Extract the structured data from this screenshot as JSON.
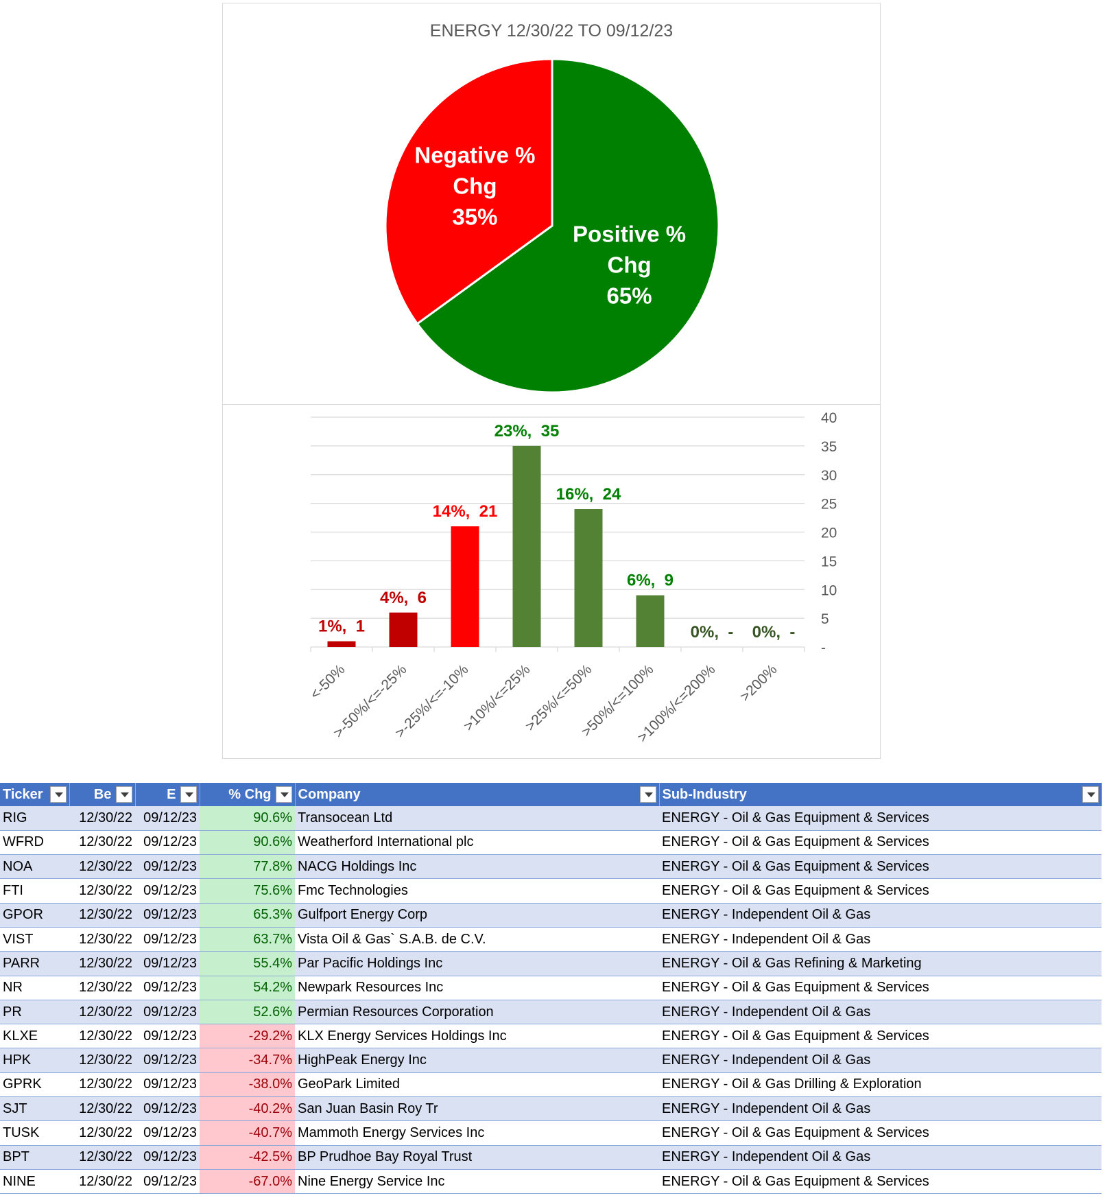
{
  "chart_data": [
    {
      "type": "pie",
      "title": "ENERGY 12/30/22 TO 09/12/23",
      "slices": [
        {
          "label_lines": [
            "Positive %",
            "Chg",
            "65%"
          ],
          "value": 65,
          "color": "#008000"
        },
        {
          "label_lines": [
            "Negative %",
            "Chg",
            "35%"
          ],
          "value": 35,
          "color": "#ff0000"
        }
      ]
    },
    {
      "type": "bar",
      "categories": [
        "<-50%",
        ">-50%/<=-25%",
        ">-25%/<=-10%",
        ">10%/<=25%",
        ">25%/<=50%",
        ">50%/<=100%",
        ">100%/<=200%",
        ">200%"
      ],
      "values": [
        1,
        6,
        21,
        35,
        24,
        9,
        0,
        0
      ],
      "data_labels": [
        "1%,  1",
        "4%,  6",
        "14%,  21",
        "23%,  35",
        "16%,  24",
        "6%,  9",
        "0%,  -",
        "0%,  -"
      ],
      "bar_colors": [
        "#c00000",
        "#c00000",
        "#ff0000",
        "#548235",
        "#548235",
        "#548235",
        "#548235",
        "#548235"
      ],
      "label_colors": [
        "#c00000",
        "#c00000",
        "#ff0000",
        "#008000",
        "#008000",
        "#008000",
        "#375623",
        "#375623"
      ],
      "ylim": [
        0,
        40
      ],
      "yticks": [
        0,
        5,
        10,
        15,
        20,
        25,
        30,
        35,
        40
      ],
      "ytick_labels": [
        "-",
        "5",
        "10",
        "15",
        "20",
        "25",
        "30",
        "35",
        "40"
      ],
      "y_axis_side": "right",
      "grid": true
    }
  ],
  "table": {
    "headers": [
      "Ticker",
      "Be",
      "E",
      "% Chg",
      "Company",
      "Sub-Industry"
    ],
    "rows": [
      [
        "RIG",
        "12/30/22",
        "09/12/23",
        "90.6%",
        "Transocean Ltd",
        "ENERGY - Oil & Gas Equipment & Services"
      ],
      [
        "WFRD",
        "12/30/22",
        "09/12/23",
        "90.6%",
        "Weatherford International plc",
        "ENERGY - Oil & Gas Equipment & Services"
      ],
      [
        "NOA",
        "12/30/22",
        "09/12/23",
        "77.8%",
        "NACG Holdings Inc",
        "ENERGY - Oil & Gas Equipment & Services"
      ],
      [
        "FTI",
        "12/30/22",
        "09/12/23",
        "75.6%",
        "Fmc Technologies",
        "ENERGY - Oil & Gas Equipment & Services"
      ],
      [
        "GPOR",
        "12/30/22",
        "09/12/23",
        "65.3%",
        "Gulfport Energy Corp",
        "ENERGY - Independent Oil & Gas"
      ],
      [
        "VIST",
        "12/30/22",
        "09/12/23",
        "63.7%",
        "Vista Oil & Gas` S.A.B. de C.V.",
        "ENERGY - Independent Oil & Gas"
      ],
      [
        "PARR",
        "12/30/22",
        "09/12/23",
        "55.4%",
        "Par Pacific Holdings Inc",
        "ENERGY - Oil & Gas Refining & Marketing"
      ],
      [
        "NR",
        "12/30/22",
        "09/12/23",
        "54.2%",
        "Newpark Resources Inc",
        "ENERGY - Oil & Gas Equipment & Services"
      ],
      [
        "PR",
        "12/30/22",
        "09/12/23",
        "52.6%",
        "Permian Resources Corporation",
        "ENERGY - Independent Oil & Gas"
      ],
      [
        "KLXE",
        "12/30/22",
        "09/12/23",
        "-29.2%",
        "KLX Energy Services Holdings Inc",
        "ENERGY - Oil & Gas Equipment & Services"
      ],
      [
        "HPK",
        "12/30/22",
        "09/12/23",
        "-34.7%",
        "HighPeak Energy Inc",
        "ENERGY - Independent Oil & Gas"
      ],
      [
        "GPRK",
        "12/30/22",
        "09/12/23",
        "-38.0%",
        "GeoPark Limited",
        "ENERGY - Oil & Gas Drilling & Exploration"
      ],
      [
        "SJT",
        "12/30/22",
        "09/12/23",
        "-40.2%",
        "San Juan Basin Roy Tr",
        "ENERGY - Independent Oil & Gas"
      ],
      [
        "TUSK",
        "12/30/22",
        "09/12/23",
        "-40.7%",
        "Mammoth Energy Services Inc",
        "ENERGY - Oil & Gas Equipment & Services"
      ],
      [
        "BPT",
        "12/30/22",
        "09/12/23",
        "-42.5%",
        "BP Prudhoe Bay Royal Trust",
        "ENERGY - Independent Oil & Gas"
      ],
      [
        "NINE",
        "12/30/22",
        "09/12/23",
        "-67.0%",
        "Nine Energy Service Inc",
        "ENERGY - Oil & Gas Equipment & Services"
      ]
    ]
  }
}
